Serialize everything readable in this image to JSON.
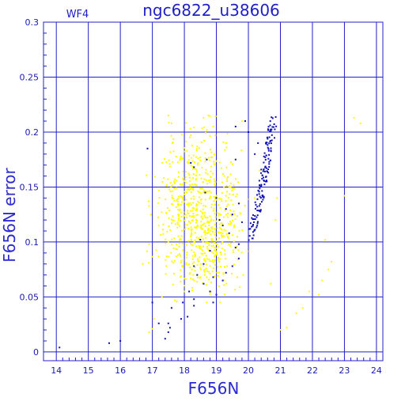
{
  "chart_data": {
    "type": "scatter",
    "title": "ngc6822_u38606",
    "subtitle": "WF4",
    "xlabel": "F656N",
    "ylabel": "F656N error",
    "xlim": [
      13.6,
      24.2
    ],
    "ylim": [
      -0.008,
      0.3
    ],
    "xticks": [
      "14",
      "15",
      "16",
      "17",
      "18",
      "19",
      "20",
      "21",
      "22",
      "23",
      "24"
    ],
    "yticks": [
      "0",
      "0.05",
      "0.1",
      "0.15",
      "0.2",
      "0.25",
      "0.3"
    ],
    "grid": true,
    "colors": {
      "frame": "#2020c8",
      "grid": "#2020c8",
      "yellow": "#ffff00",
      "blue": "#1010b0"
    },
    "series": [
      {
        "color": "yellow",
        "points": [
          [
            16.9,
            0.018
          ],
          [
            17.0,
            0.021
          ],
          [
            17.05,
            0.03
          ],
          [
            16.7,
            0.08
          ],
          [
            16.9,
            0.098
          ],
          [
            17.2,
            0.115
          ],
          [
            17.3,
            0.05
          ],
          [
            17.6,
            0.208
          ],
          [
            17.45,
            0.152
          ],
          [
            18.75,
            0.215
          ],
          [
            18.6,
            0.213
          ],
          [
            18.9,
            0.205
          ],
          [
            19.3,
            0.19
          ],
          [
            19.8,
            0.21
          ],
          [
            20.35,
            0.165
          ],
          [
            20.2,
            0.14
          ],
          [
            20.85,
            0.12
          ],
          [
            20.9,
            0.14
          ],
          [
            21.0,
            0.02
          ],
          [
            21.2,
            0.022
          ],
          [
            21.5,
            0.035
          ],
          [
            21.7,
            0.04
          ],
          [
            21.9,
            0.055
          ],
          [
            22.2,
            0.052
          ],
          [
            22.3,
            0.065
          ],
          [
            22.4,
            0.102
          ],
          [
            22.6,
            0.082
          ],
          [
            22.5,
            0.075
          ],
          [
            23.0,
            0.142
          ],
          [
            23.3,
            0.213
          ],
          [
            23.5,
            0.208
          ],
          [
            20.7,
            0.062
          ]
        ],
        "cluster": [
          {
            "cx": 18.35,
            "cy": 0.128,
            "sx": 0.58,
            "sy": 0.035,
            "n": 560
          },
          {
            "cx": 18.8,
            "cy": 0.095,
            "sx": 0.45,
            "sy": 0.02,
            "n": 140
          },
          {
            "cx": 19.3,
            "cy": 0.125,
            "sx": 0.35,
            "sy": 0.025,
            "n": 70
          }
        ]
      },
      {
        "color": "blue",
        "points": [
          [
            14.1,
            0.004
          ],
          [
            15.65,
            0.008
          ],
          [
            16.0,
            0.01
          ],
          [
            17.4,
            0.012
          ],
          [
            17.5,
            0.018
          ],
          [
            17.55,
            0.022
          ],
          [
            17.5,
            0.026
          ],
          [
            17.2,
            0.026
          ],
          [
            17.0,
            0.045
          ],
          [
            17.6,
            0.04
          ],
          [
            17.9,
            0.03
          ],
          [
            17.95,
            0.045
          ],
          [
            18.1,
            0.032
          ],
          [
            18.15,
            0.055
          ],
          [
            18.3,
            0.048
          ],
          [
            18.4,
            0.07
          ],
          [
            18.6,
            0.062
          ],
          [
            18.8,
            0.055
          ],
          [
            18.9,
            0.045
          ],
          [
            19.0,
            0.052
          ],
          [
            18.9,
            0.068
          ],
          [
            19.2,
            0.065
          ],
          [
            19.3,
            0.072
          ],
          [
            18.3,
            0.078
          ],
          [
            18.6,
            0.08
          ],
          [
            19.5,
            0.078
          ],
          [
            19.7,
            0.085
          ],
          [
            19.6,
            0.095
          ],
          [
            19.7,
            0.098
          ],
          [
            19.4,
            0.108
          ],
          [
            19.2,
            0.115
          ],
          [
            19.1,
            0.12
          ],
          [
            19.5,
            0.125
          ],
          [
            19.8,
            0.118
          ],
          [
            19.7,
            0.135
          ],
          [
            19.3,
            0.13
          ],
          [
            19.0,
            0.14
          ],
          [
            18.7,
            0.175
          ],
          [
            16.85,
            0.185
          ],
          [
            18.3,
            0.168
          ],
          [
            18.2,
            0.172
          ],
          [
            18.65,
            0.145
          ],
          [
            18.5,
            0.102
          ],
          [
            18.8,
            0.092
          ],
          [
            19.6,
            0.205
          ],
          [
            20.2,
            0.18
          ],
          [
            20.0,
            0.2
          ],
          [
            19.9,
            0.21
          ],
          [
            20.3,
            0.19
          ],
          [
            19.6,
            0.175
          ],
          [
            18.3,
            0.042
          ]
        ],
        "sequence": {
          "x0": 19.95,
          "y0": 0.1,
          "x1": 20.8,
          "y1": 0.215,
          "n": 140
        }
      }
    ]
  }
}
